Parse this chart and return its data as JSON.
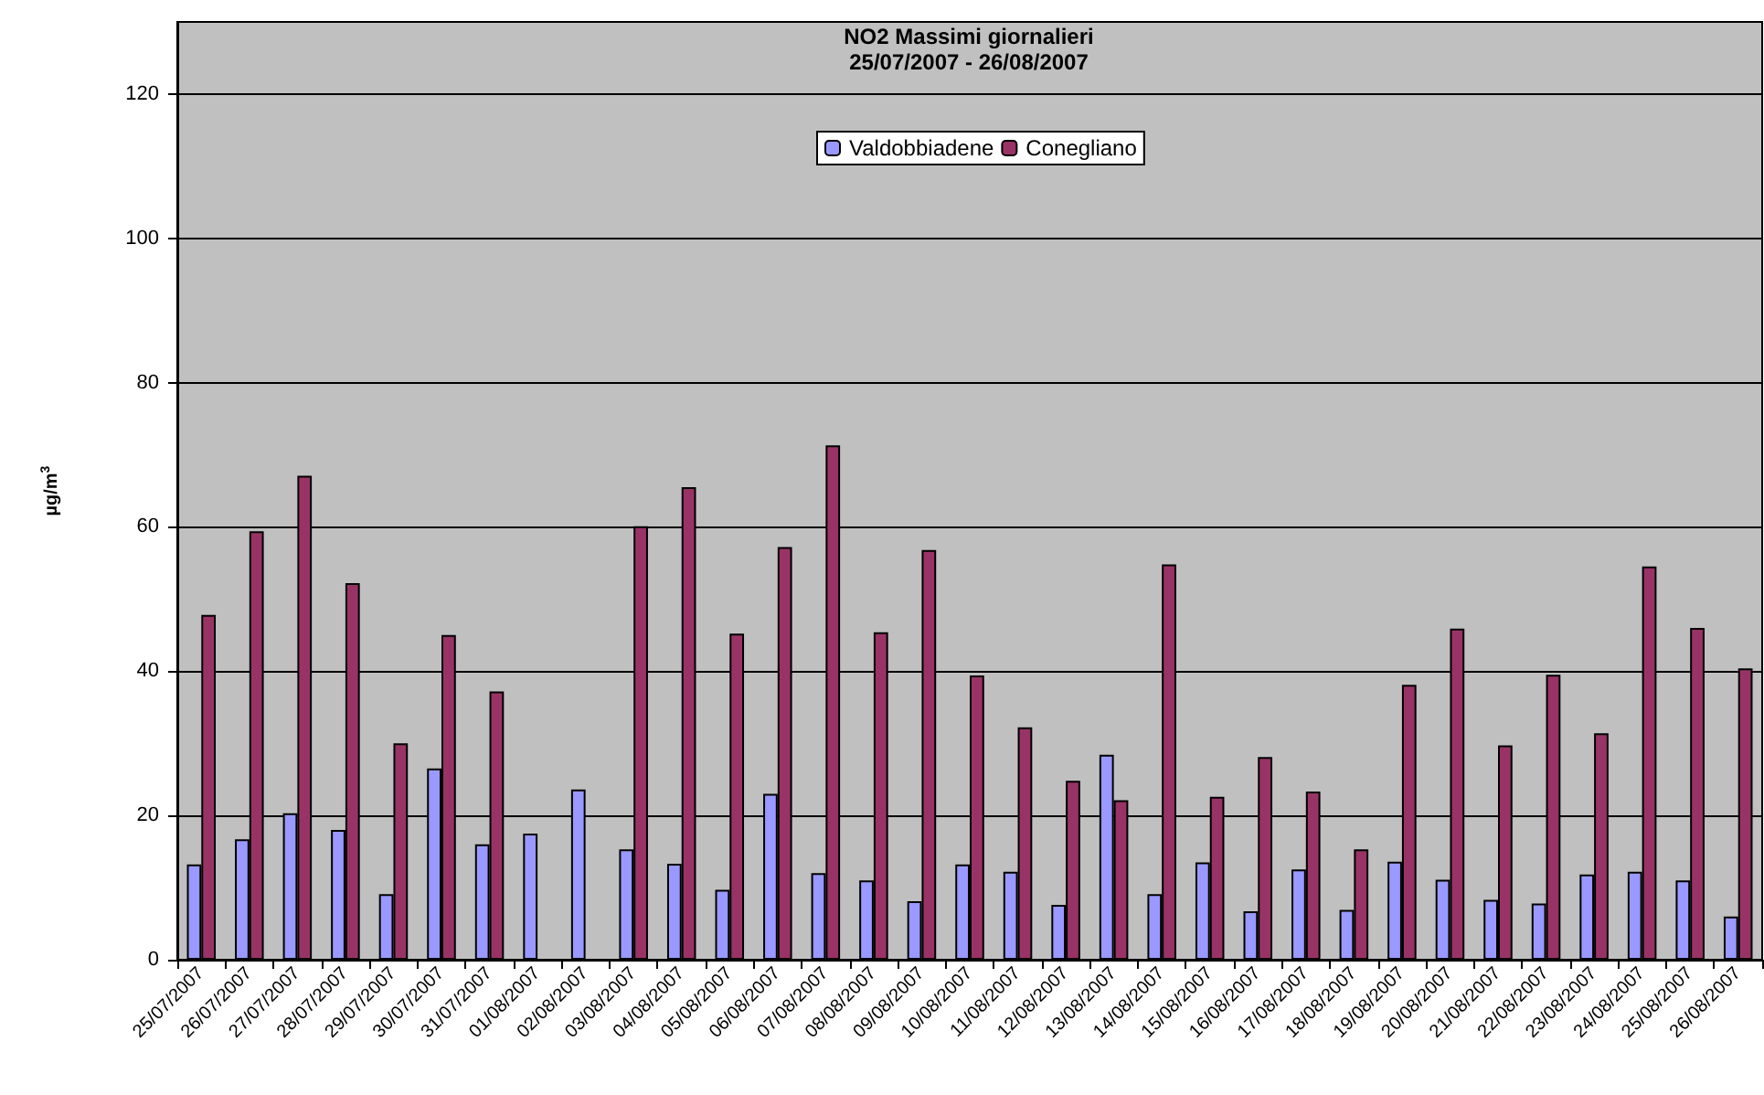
{
  "chart_data": {
    "type": "bar",
    "title": "NO2 Massimi giornalieri",
    "subtitle": "25/07/2007 - 26/08/2007",
    "ylabel": "µg/m$^{3}$",
    "categories": [
      "25/07/2007",
      "26/07/2007",
      "27/07/2007",
      "28/07/2007",
      "29/07/2007",
      "30/07/2007",
      "31/07/2007",
      "01/08/2007",
      "02/08/2007",
      "03/08/2007",
      "04/08/2007",
      "05/08/2007",
      "06/08/2007",
      "07/08/2007",
      "08/08/2007",
      "09/08/2007",
      "10/08/2007",
      "11/08/2007",
      "12/08/2007",
      "13/08/2007",
      "14/08/2007",
      "15/08/2007",
      "16/08/2007",
      "17/08/2007",
      "18/08/2007",
      "19/08/2007",
      "20/08/2007",
      "21/08/2007",
      "22/08/2007",
      "23/08/2007",
      "24/08/2007",
      "25/08/2007",
      "26/08/2007"
    ],
    "series": [
      {
        "name": "Valdobbiadene",
        "color": "#9999ff",
        "values": [
          13.2,
          16.7,
          20.3,
          18,
          9.1,
          26.5,
          16,
          17.5,
          23.6,
          15.3,
          13.3,
          9.7,
          23,
          12,
          11,
          8.1,
          13.2,
          12.2,
          7.6,
          28.4,
          9.1,
          13.5,
          6.7,
          12.5,
          6.9,
          13.6,
          11.1,
          8.3,
          7.8,
          11.8,
          12.2,
          11,
          6
        ]
      },
      {
        "name": "Conegliano",
        "color": "#993366",
        "values": [
          47.8,
          59.4,
          67.1,
          52.2,
          30,
          45,
          37.2,
          null,
          null,
          60.1,
          65.5,
          45.2,
          57.2,
          71.3,
          45.4,
          56.8,
          39.4,
          32.2,
          24.8,
          22.1,
          54.8,
          22.6,
          28.1,
          23.3,
          15.3,
          38.1,
          45.9,
          29.7,
          39.5,
          31.4,
          54.5,
          46,
          40.4
        ]
      }
    ],
    "ylim": [
      0,
      130
    ],
    "yticks": [
      0,
      20,
      40,
      60,
      80,
      100,
      120
    ],
    "grid": "y",
    "legend": "top"
  }
}
